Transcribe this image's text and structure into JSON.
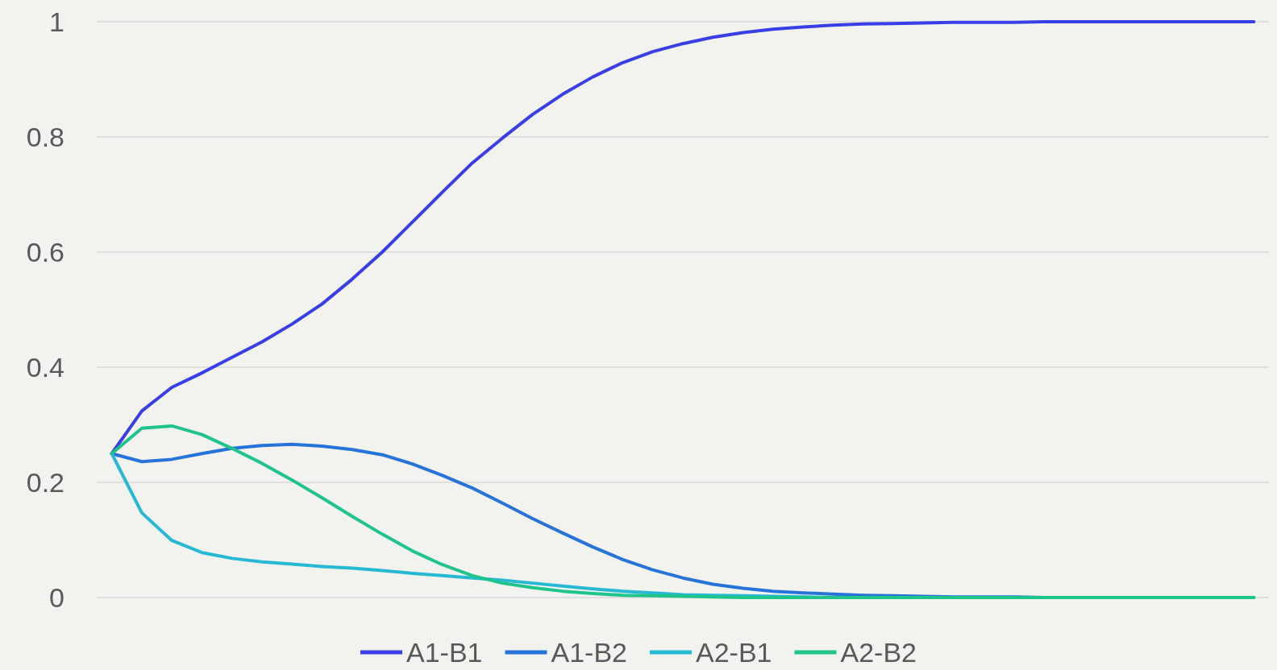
{
  "chart_data": {
    "type": "line",
    "categories": [
      null,
      null,
      null,
      null,
      null,
      null,
      null,
      null,
      null,
      null,
      null,
      null,
      null,
      null,
      null,
      null,
      null,
      null,
      null,
      null,
      null,
      null,
      null,
      null,
      null,
      null,
      null,
      null,
      null,
      null,
      null,
      null,
      null,
      null,
      null,
      null,
      null,
      null,
      null
    ],
    "series": [
      {
        "name": "A1-B1",
        "color": "#3a3ee6",
        "values": [
          0.25,
          0.324,
          0.365,
          0.39,
          0.417,
          0.444,
          0.475,
          0.51,
          0.553,
          0.6,
          0.652,
          0.704,
          0.755,
          0.798,
          0.839,
          0.874,
          0.904,
          0.929,
          0.948,
          0.962,
          0.973,
          0.981,
          0.987,
          0.991,
          0.994,
          0.996,
          0.997,
          0.998,
          0.999,
          0.999,
          0.999,
          1,
          1,
          1,
          1,
          1,
          1,
          1,
          1
        ]
      },
      {
        "name": "A1-B2",
        "color": "#2673d9",
        "values": [
          0.25,
          0.236,
          0.24,
          0.25,
          0.259,
          0.264,
          0.266,
          0.263,
          0.257,
          0.248,
          0.232,
          0.212,
          0.19,
          0.164,
          0.137,
          0.112,
          0.088,
          0.066,
          0.048,
          0.034,
          0.023,
          0.016,
          0.011,
          0.008,
          0.006,
          0.004,
          0.003,
          0.002,
          0.001,
          0.001,
          0.001,
          0,
          0,
          null,
          null,
          null,
          null,
          null,
          null
        ]
      },
      {
        "name": "A2-B1",
        "color": "#27b8d4",
        "values": [
          0.25,
          0.147,
          0.099,
          0.078,
          0.068,
          0.062,
          0.058,
          0.054,
          0.051,
          0.047,
          0.042,
          0.038,
          0.034,
          0.03,
          0.025,
          0.02,
          0.015,
          0.011,
          0.008,
          0.005,
          0.004,
          0.003,
          0.002,
          0.001,
          0,
          0,
          0,
          0,
          0,
          0,
          0,
          0,
          0,
          0,
          0,
          0,
          0,
          0,
          0
        ]
      },
      {
        "name": "A2-B2",
        "color": "#1fc48a",
        "values": [
          0.25,
          0.294,
          0.298,
          0.283,
          0.259,
          0.233,
          0.204,
          0.173,
          0.141,
          0.11,
          0.081,
          0.057,
          0.038,
          0.025,
          0.017,
          0.011,
          0.007,
          0.004,
          0.003,
          0.002,
          0.001,
          0,
          0,
          0,
          0,
          0,
          0,
          0,
          0,
          0,
          0,
          0,
          0,
          0,
          0,
          0,
          0,
          0,
          0
        ]
      }
    ],
    "ylim": [
      0,
      1
    ],
    "yticks": [
      0,
      0.2,
      0.4,
      0.6,
      0.8,
      1
    ],
    "grid": "y",
    "legend": "bottom",
    "marker": "none",
    "line_style": "solid"
  }
}
